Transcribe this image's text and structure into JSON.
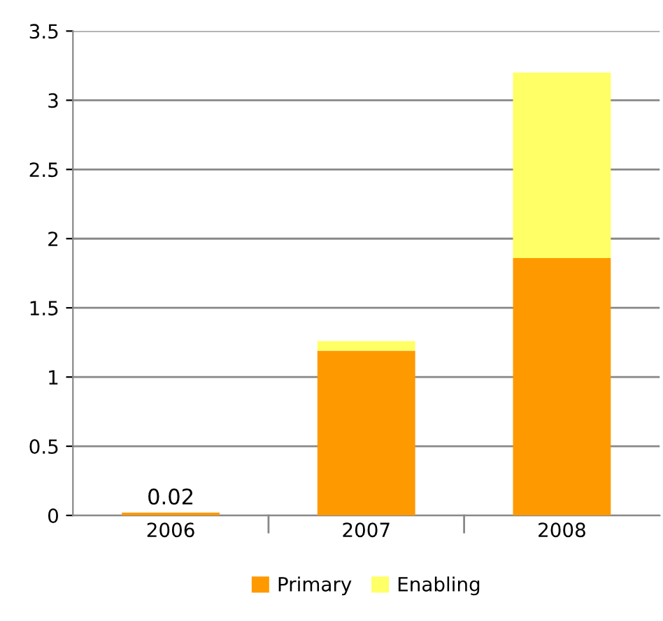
{
  "chart_data": {
    "type": "bar",
    "stacked": true,
    "categories": [
      "2006",
      "2007",
      "2008"
    ],
    "series": [
      {
        "name": "Primary",
        "color": "#ff9900",
        "values": [
          0.02,
          1.19,
          1.86
        ],
        "value_labels": [
          "0.02",
          null,
          null
        ]
      },
      {
        "name": "Enabling",
        "color": "#ffff66",
        "values": [
          0,
          0.07,
          1.34
        ]
      }
    ],
    "ylim": [
      0,
      3.5
    ],
    "yticks": [
      0,
      0.5,
      1,
      1.5,
      2,
      2.5,
      3,
      3.5
    ],
    "grid": "y",
    "legend": "bottom"
  }
}
